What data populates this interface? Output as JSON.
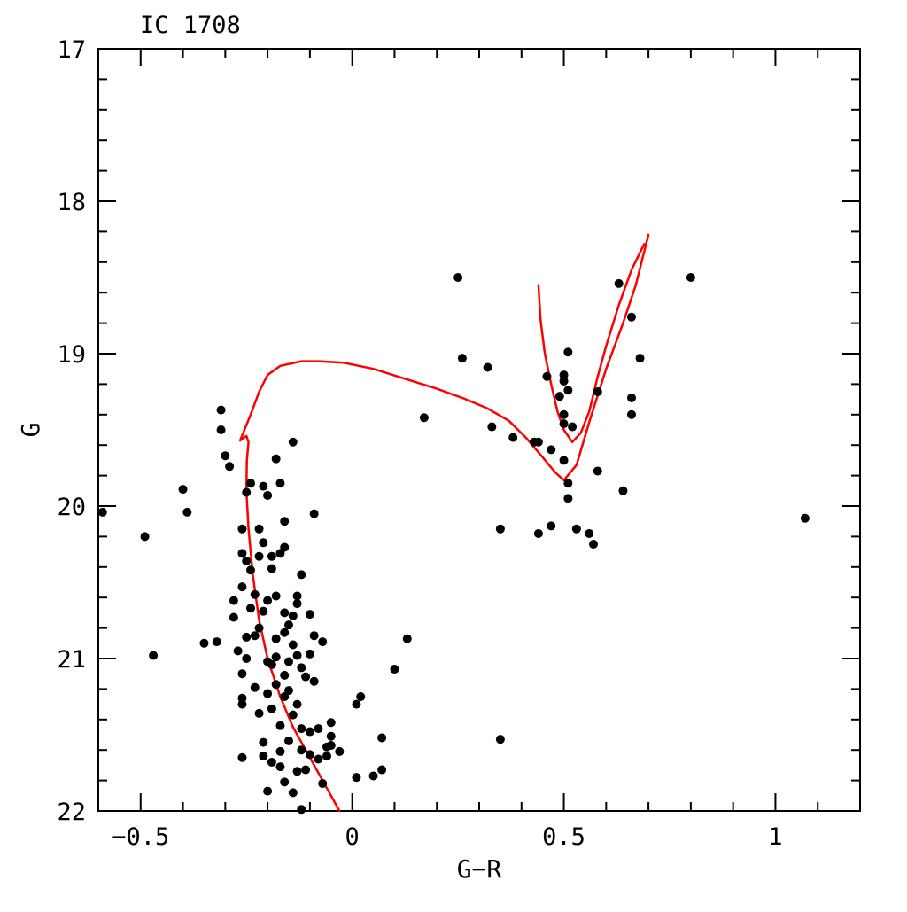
{
  "chart_data": {
    "type": "scatter",
    "title": "IC 1708",
    "xlabel": "G−R",
    "ylabel": "G",
    "xlim": [
      -0.6,
      1.2
    ],
    "ylim": [
      22,
      17
    ],
    "y_inverted": true,
    "grid": false,
    "legend": "none",
    "x_ticks": [
      -0.5,
      0,
      0.5,
      1
    ],
    "x_tick_labels": [
      "−0.5",
      "0",
      "0.5",
      "1"
    ],
    "y_ticks": [
      17,
      18,
      19,
      20,
      21,
      22
    ],
    "y_tick_labels": [
      "17",
      "18",
      "19",
      "20",
      "21",
      "22"
    ],
    "colors": {
      "points": "#000000",
      "isochrone": "#ff0000",
      "axes": "#000000"
    },
    "series": [
      {
        "kind": "points",
        "values": [
          [
            -0.59,
            20.04
          ],
          [
            -0.49,
            20.2
          ],
          [
            -0.47,
            20.98
          ],
          [
            -0.4,
            19.89
          ],
          [
            -0.39,
            20.04
          ],
          [
            -0.35,
            20.9
          ],
          [
            -0.32,
            20.89
          ],
          [
            -0.31,
            19.37
          ],
          [
            -0.31,
            19.5
          ],
          [
            -0.3,
            19.67
          ],
          [
            -0.29,
            19.74
          ],
          [
            -0.28,
            20.62
          ],
          [
            -0.28,
            20.73
          ],
          [
            -0.27,
            20.95
          ],
          [
            -0.26,
            20.53
          ],
          [
            -0.26,
            20.15
          ],
          [
            -0.26,
            20.31
          ],
          [
            -0.26,
            21.26
          ],
          [
            -0.26,
            21.3
          ],
          [
            -0.26,
            21.1
          ],
          [
            -0.26,
            21.65
          ],
          [
            -0.25,
            19.91
          ],
          [
            -0.25,
            20.36
          ],
          [
            -0.25,
            20.86
          ],
          [
            -0.25,
            21.0
          ],
          [
            -0.24,
            19.85
          ],
          [
            -0.24,
            20.67
          ],
          [
            -0.24,
            20.42
          ],
          [
            -0.23,
            20.58
          ],
          [
            -0.23,
            20.85
          ],
          [
            -0.23,
            21.19
          ],
          [
            -0.22,
            20.15
          ],
          [
            -0.22,
            20.33
          ],
          [
            -0.22,
            20.8
          ],
          [
            -0.22,
            21.36
          ],
          [
            -0.21,
            19.87
          ],
          [
            -0.21,
            20.24
          ],
          [
            -0.21,
            20.69
          ],
          [
            -0.21,
            21.55
          ],
          [
            -0.21,
            21.64
          ],
          [
            -0.2,
            19.93
          ],
          [
            -0.2,
            20.62
          ],
          [
            -0.2,
            21.02
          ],
          [
            -0.2,
            21.23
          ],
          [
            -0.2,
            21.87
          ],
          [
            -0.19,
            21.04
          ],
          [
            -0.19,
            20.33
          ],
          [
            -0.19,
            20.41
          ],
          [
            -0.19,
            21.33
          ],
          [
            -0.19,
            21.68
          ],
          [
            -0.18,
            19.69
          ],
          [
            -0.18,
            20.59
          ],
          [
            -0.18,
            20.87
          ],
          [
            -0.18,
            20.99
          ],
          [
            -0.18,
            21.17
          ],
          [
            -0.17,
            19.85
          ],
          [
            -0.17,
            20.31
          ],
          [
            -0.17,
            21.44
          ],
          [
            -0.17,
            21.61
          ],
          [
            -0.17,
            21.71
          ],
          [
            -0.16,
            20.1
          ],
          [
            -0.16,
            20.27
          ],
          [
            -0.16,
            20.7
          ],
          [
            -0.16,
            20.83
          ],
          [
            -0.16,
            21.11
          ],
          [
            -0.16,
            21.25
          ],
          [
            -0.16,
            21.81
          ],
          [
            -0.15,
            20.78
          ],
          [
            -0.15,
            21.02
          ],
          [
            -0.15,
            21.54
          ],
          [
            -0.15,
            21.21
          ],
          [
            -0.14,
            19.58
          ],
          [
            -0.14,
            20.72
          ],
          [
            -0.14,
            20.91
          ],
          [
            -0.14,
            21.37
          ],
          [
            -0.14,
            21.88
          ],
          [
            -0.13,
            20.64
          ],
          [
            -0.13,
            20.98
          ],
          [
            -0.13,
            21.3
          ],
          [
            -0.13,
            21.74
          ],
          [
            -0.13,
            20.59
          ],
          [
            -0.12,
            20.45
          ],
          [
            -0.12,
            21.06
          ],
          [
            -0.12,
            21.46
          ],
          [
            -0.12,
            21.6
          ],
          [
            -0.12,
            21.99
          ],
          [
            -0.11,
            21.12
          ],
          [
            -0.11,
            21.73
          ],
          [
            -0.1,
            20.71
          ],
          [
            -0.1,
            20.97
          ],
          [
            -0.1,
            21.48
          ],
          [
            -0.1,
            21.63
          ],
          [
            -0.09,
            20.05
          ],
          [
            -0.09,
            20.85
          ],
          [
            -0.09,
            21.15
          ],
          [
            -0.08,
            21.46
          ],
          [
            -0.08,
            21.66
          ],
          [
            -0.07,
            21.82
          ],
          [
            -0.07,
            20.89
          ],
          [
            -0.06,
            21.58
          ],
          [
            -0.06,
            21.64
          ],
          [
            -0.05,
            21.51
          ],
          [
            -0.05,
            21.42
          ],
          [
            -0.05,
            21.57
          ],
          [
            -0.03,
            21.61
          ],
          [
            0.01,
            21.3
          ],
          [
            0.02,
            21.25
          ],
          [
            0.01,
            21.78
          ],
          [
            0.05,
            21.77
          ],
          [
            0.07,
            21.73
          ],
          [
            0.07,
            21.52
          ],
          [
            0.1,
            21.07
          ],
          [
            0.13,
            20.87
          ],
          [
            0.17,
            19.42
          ],
          [
            0.25,
            18.5
          ],
          [
            0.26,
            19.03
          ],
          [
            0.32,
            19.09
          ],
          [
            0.33,
            19.48
          ],
          [
            0.35,
            20.15
          ],
          [
            0.35,
            21.53
          ],
          [
            0.38,
            19.55
          ],
          [
            0.43,
            19.58
          ],
          [
            0.44,
            19.58
          ],
          [
            0.44,
            20.18
          ],
          [
            0.46,
            19.15
          ],
          [
            0.47,
            19.63
          ],
          [
            0.47,
            20.13
          ],
          [
            0.49,
            19.28
          ],
          [
            0.5,
            19.14
          ],
          [
            0.5,
            19.18
          ],
          [
            0.5,
            19.4
          ],
          [
            0.5,
            19.46
          ],
          [
            0.5,
            19.7
          ],
          [
            0.51,
            18.99
          ],
          [
            0.51,
            19.24
          ],
          [
            0.51,
            19.85
          ],
          [
            0.51,
            19.95
          ],
          [
            0.52,
            19.48
          ],
          [
            0.53,
            20.15
          ],
          [
            0.56,
            20.18
          ],
          [
            0.57,
            20.25
          ],
          [
            0.58,
            19.25
          ],
          [
            0.58,
            19.77
          ],
          [
            0.63,
            18.54
          ],
          [
            0.64,
            19.9
          ],
          [
            0.66,
            18.76
          ],
          [
            0.66,
            19.29
          ],
          [
            0.66,
            19.4
          ],
          [
            0.68,
            19.03
          ],
          [
            0.8,
            18.5
          ],
          [
            1.07,
            20.08
          ]
        ]
      },
      {
        "kind": "line",
        "values": [
          [
            -0.03,
            22.0
          ],
          [
            -0.06,
            21.85
          ],
          [
            -0.1,
            21.65
          ],
          [
            -0.14,
            21.45
          ],
          [
            -0.17,
            21.25
          ],
          [
            -0.2,
            21.0
          ],
          [
            -0.22,
            20.75
          ],
          [
            -0.235,
            20.45
          ],
          [
            -0.245,
            20.15
          ],
          [
            -0.25,
            19.9
          ],
          [
            -0.249,
            19.7
          ],
          [
            -0.245,
            19.58
          ],
          [
            -0.25,
            19.54
          ],
          [
            -0.26,
            19.56
          ],
          [
            -0.265,
            19.57
          ],
          [
            -0.24,
            19.4
          ],
          [
            -0.22,
            19.25
          ],
          [
            -0.2,
            19.14
          ],
          [
            -0.17,
            19.08
          ],
          [
            -0.12,
            19.05
          ],
          [
            -0.08,
            19.05
          ],
          [
            -0.02,
            19.06
          ],
          [
            0.05,
            19.1
          ],
          [
            0.13,
            19.17
          ],
          [
            0.2,
            19.23
          ],
          [
            0.26,
            19.29
          ],
          [
            0.32,
            19.36
          ],
          [
            0.37,
            19.44
          ],
          [
            0.41,
            19.55
          ],
          [
            0.45,
            19.68
          ],
          [
            0.48,
            19.78
          ],
          [
            0.5,
            19.83
          ],
          [
            0.53,
            19.73
          ],
          [
            0.56,
            19.45
          ],
          [
            0.6,
            19.1
          ],
          [
            0.64,
            18.8
          ],
          [
            0.67,
            18.55
          ],
          [
            0.7,
            18.22
          ]
        ]
      },
      {
        "kind": "line",
        "values": [
          [
            0.44,
            18.55
          ],
          [
            0.445,
            18.78
          ],
          [
            0.455,
            19.0
          ],
          [
            0.47,
            19.2
          ],
          [
            0.485,
            19.38
          ],
          [
            0.5,
            19.5
          ],
          [
            0.52,
            19.58
          ],
          [
            0.54,
            19.52
          ],
          [
            0.56,
            19.38
          ],
          [
            0.58,
            19.15
          ],
          [
            0.6,
            18.95
          ],
          [
            0.63,
            18.68
          ],
          [
            0.66,
            18.45
          ],
          [
            0.69,
            18.28
          ]
        ]
      }
    ]
  }
}
